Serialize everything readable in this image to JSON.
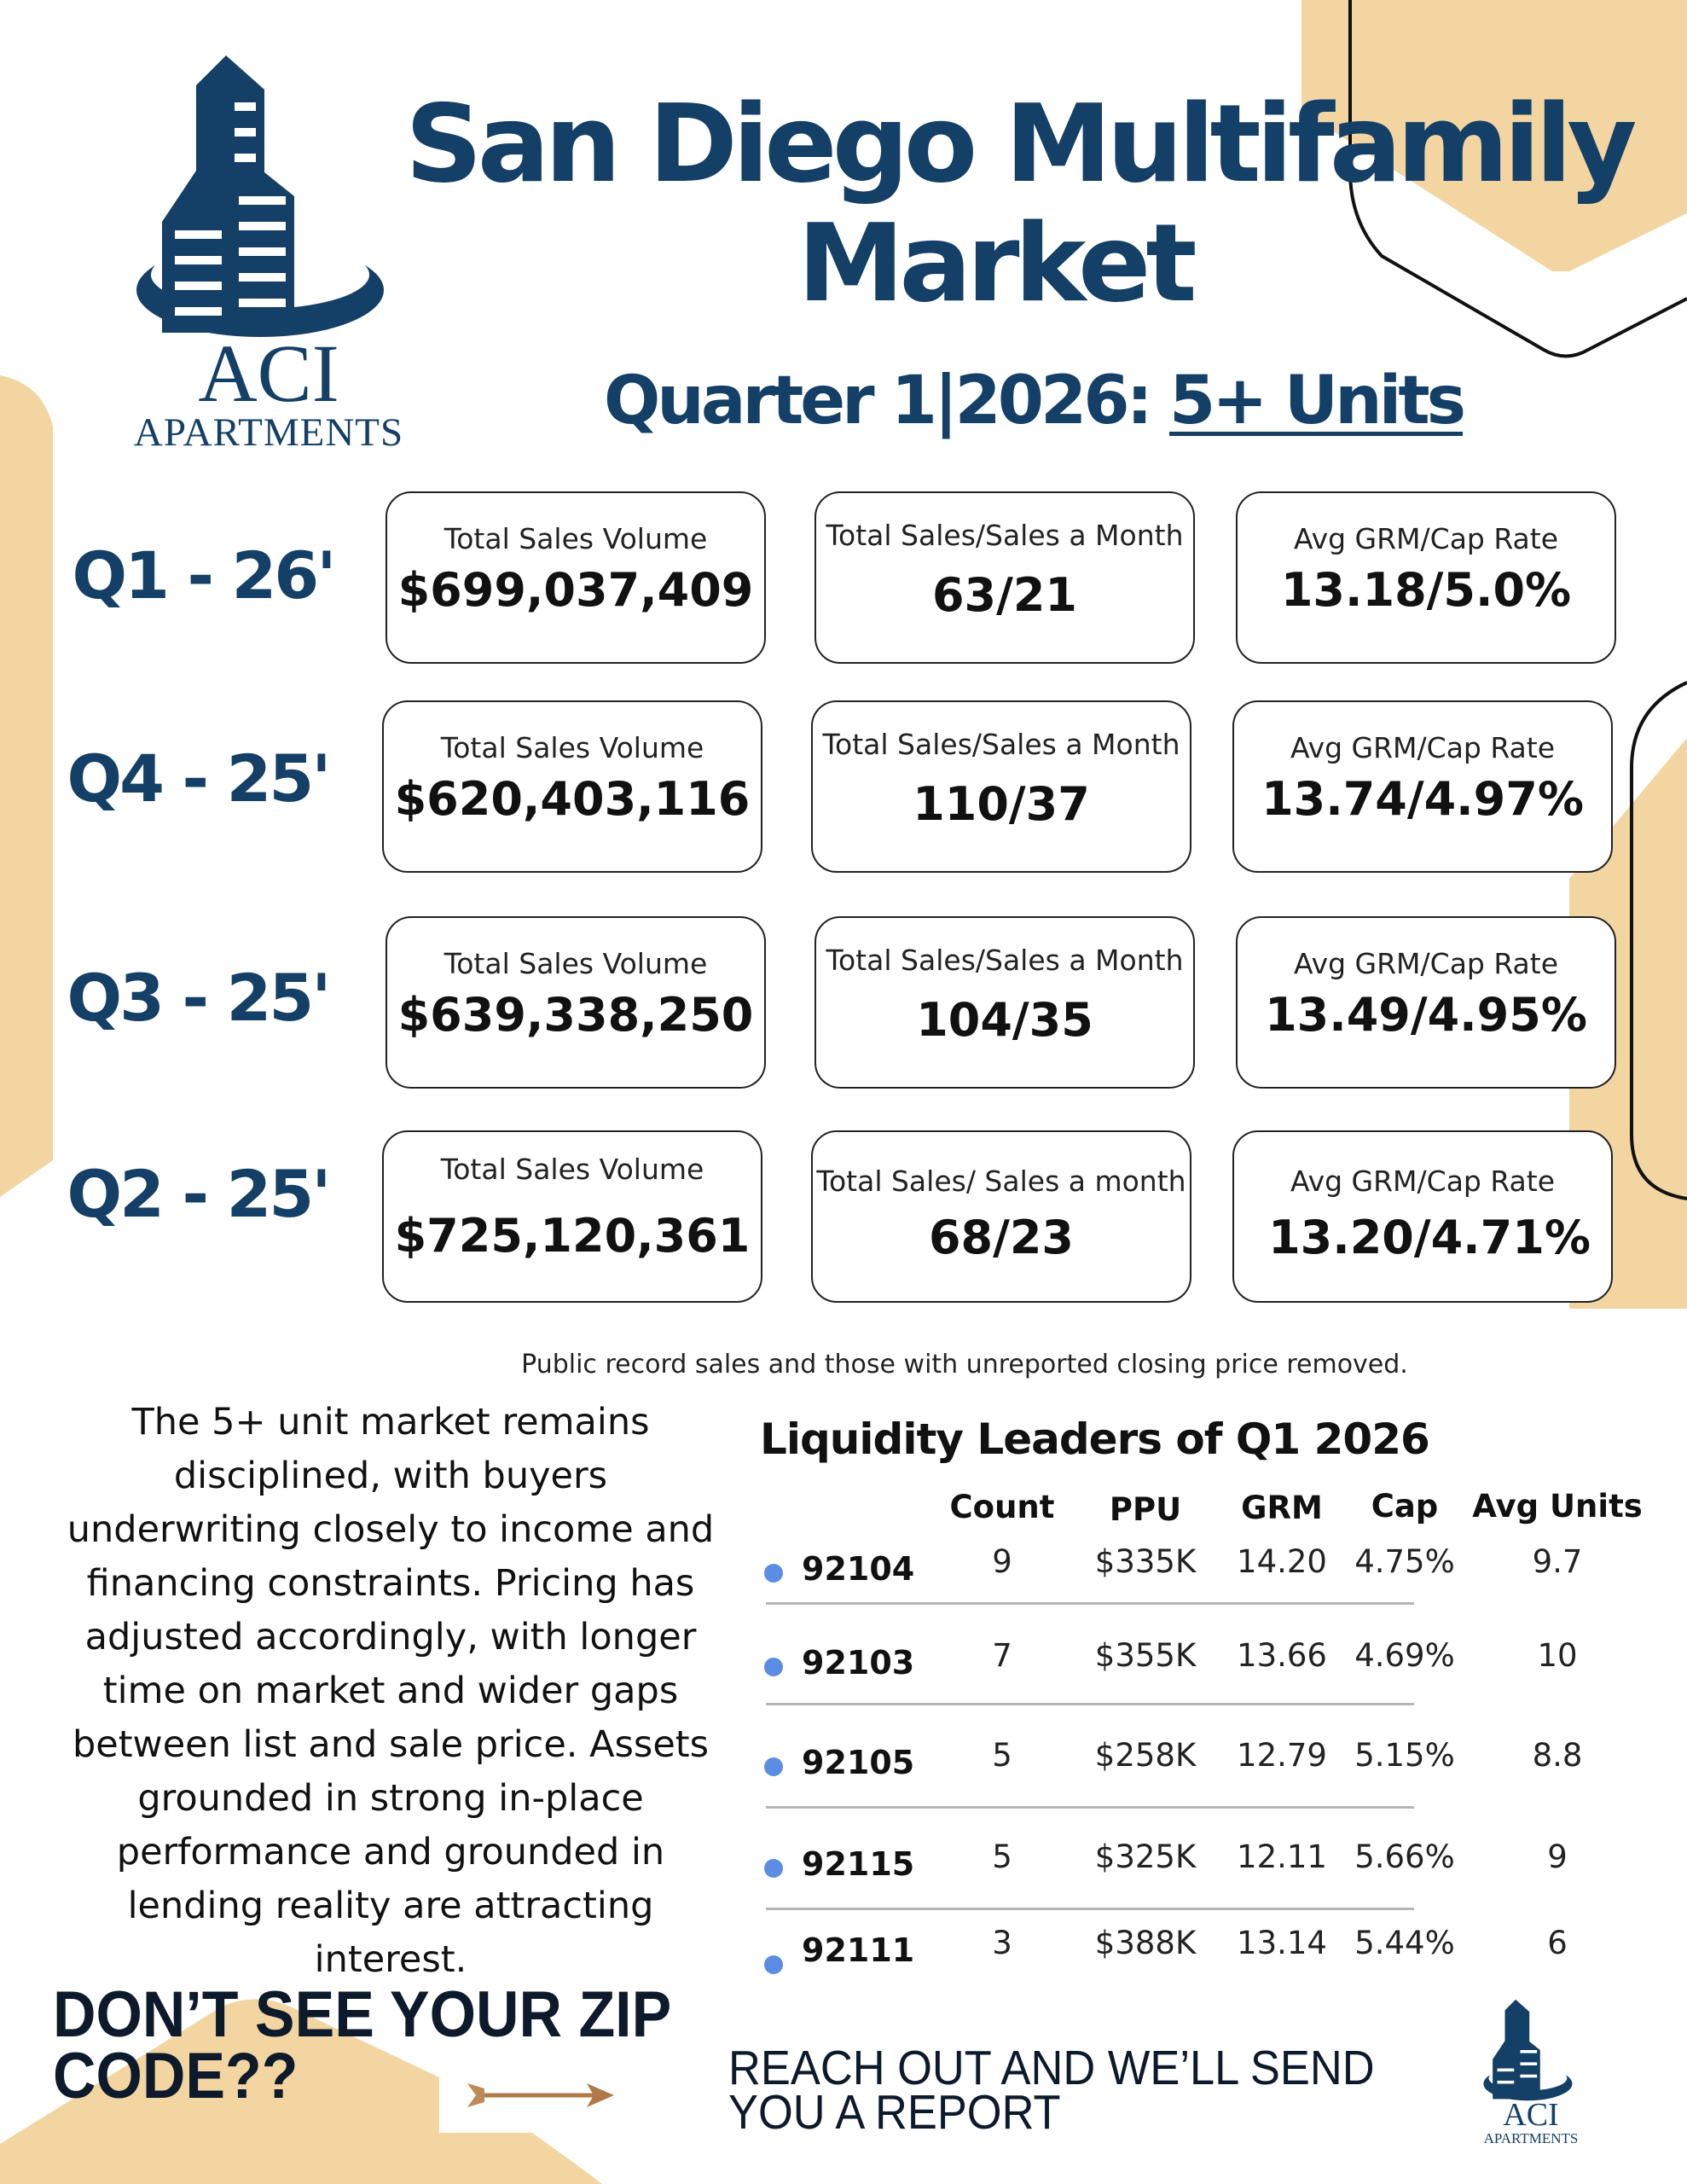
{
  "header": {
    "title_line1": "San Diego Multifamily",
    "title_line2": "Market",
    "subtitle_prefix": "Quarter 1|2026:",
    "subtitle_highlight": "5+ Units"
  },
  "logo": {
    "name": "ACI",
    "sub": "APARTMENTS"
  },
  "quarters": [
    {
      "label": "Q1 - 26'",
      "cards": [
        {
          "label": "Total Sales Volume",
          "value": "$699,037,409"
        },
        {
          "label": "Total Sales/Sales a Month",
          "value": "63/21"
        },
        {
          "label": "Avg GRM/Cap Rate",
          "value": "13.18/5.0%"
        }
      ]
    },
    {
      "label": "Q4 - 25'",
      "cards": [
        {
          "label": "Total Sales Volume",
          "value": "$620,403,116"
        },
        {
          "label": "Total Sales/Sales a Month",
          "value": "110/37"
        },
        {
          "label": "Avg GRM/Cap Rate",
          "value": "13.74/4.97%"
        }
      ]
    },
    {
      "label": "Q3 - 25'",
      "cards": [
        {
          "label": "Total Sales Volume",
          "value": "$639,338,250"
        },
        {
          "label": "Total Sales/Sales a Month",
          "value": "104/35"
        },
        {
          "label": "Avg GRM/Cap Rate",
          "value": "13.49/4.95%"
        }
      ]
    },
    {
      "label": "Q2 - 25'",
      "cards": [
        {
          "label": "Total Sales Volume",
          "value": "$725,120,361"
        },
        {
          "label": "Total Sales/ Sales a month",
          "value": "68/23"
        },
        {
          "label": "Avg GRM/Cap Rate",
          "value": "13.20/4.71%"
        }
      ]
    }
  ],
  "footnote": "Public record sales and those with unreported closing price removed.",
  "commentary": "The 5+ unit market remains disciplined, with buyers underwriting closely to income and financing constraints. Pricing has adjusted accordingly, with longer time on market and wider gaps between list and sale price. Assets grounded in strong in-place performance and grounded in lending reality are attracting interest.",
  "leaders": {
    "title": "Liquidity Leaders of Q1 2026",
    "columns": [
      "Count",
      "PPU",
      "GRM",
      "Cap",
      "Avg Units"
    ],
    "rows": [
      {
        "zip": "92104",
        "count": "9",
        "ppu": "$335K",
        "grm": "14.20",
        "cap": "4.75%",
        "avg_units": "9.7"
      },
      {
        "zip": "92103",
        "count": "7",
        "ppu": "$355K",
        "grm": "13.66",
        "cap": "4.69%",
        "avg_units": "10"
      },
      {
        "zip": "92105",
        "count": "5",
        "ppu": "$258K",
        "grm": "12.79",
        "cap": "5.15%",
        "avg_units": "8.8"
      },
      {
        "zip": "92115",
        "count": "5",
        "ppu": "$325K",
        "grm": "12.11",
        "cap": "5.66%",
        "avg_units": "9"
      },
      {
        "zip": "92111",
        "count": "3",
        "ppu": "$388K",
        "grm": "13.14",
        "cap": "5.44%",
        "avg_units": "6"
      }
    ]
  },
  "cta": {
    "line1": "DON’T SEE YOUR ZIP",
    "line2": "CODE??",
    "reach_line1": "REACH OUT AND WE’LL SEND",
    "reach_line2": "YOU A REPORT"
  },
  "colors": {
    "navy": "#143f66",
    "tan": "#f2d5a0",
    "dot": "#5b8de3"
  }
}
